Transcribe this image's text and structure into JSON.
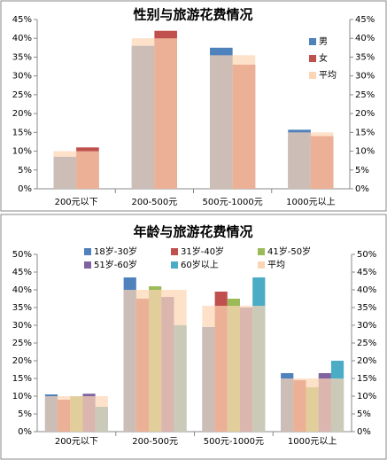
{
  "chart_data": [
    {
      "type": "bar",
      "title": "性别与旅游花费情况",
      "categories": [
        "200元以下",
        "200-500元",
        "500元-1000元",
        "1000元以上"
      ],
      "series": [
        {
          "name": "男",
          "color": "#4f81bd",
          "values": [
            8.5,
            38,
            37.5,
            15.7
          ]
        },
        {
          "name": "女",
          "color": "#c0504d",
          "values": [
            11,
            42,
            33,
            14
          ]
        },
        {
          "name": "平均",
          "color": "#fcd5b4",
          "values": [
            10,
            40,
            35.5,
            15
          ],
          "overlay": true
        }
      ],
      "ylim": [
        0,
        45
      ],
      "yticks": [
        {
          "value": 0,
          "label": "0%"
        },
        {
          "value": 5,
          "label": "5%"
        },
        {
          "value": 10,
          "label": "10%"
        },
        {
          "value": 15,
          "label": "15%"
        },
        {
          "value": 20,
          "label": "20%"
        },
        {
          "value": 25,
          "label": "25%"
        },
        {
          "value": 30,
          "label": "30%"
        },
        {
          "value": 35,
          "label": "35%"
        },
        {
          "value": 40,
          "label": "40%"
        },
        {
          "value": 45,
          "label": "45%"
        }
      ],
      "y2lim": [
        0,
        45
      ],
      "y2ticks": [
        {
          "value": 0,
          "label": "0%"
        },
        {
          "value": 5,
          "label": "5%"
        },
        {
          "value": 10,
          "label": "10%"
        },
        {
          "value": 15,
          "label": "15%"
        },
        {
          "value": 20,
          "label": "20%"
        },
        {
          "value": 25,
          "label": "25%"
        },
        {
          "value": 30,
          "label": "30%"
        },
        {
          "value": 35,
          "label": "35%"
        },
        {
          "value": 40,
          "label": "40%"
        },
        {
          "value": 45,
          "label": "45%"
        }
      ],
      "legend": "right"
    },
    {
      "type": "bar",
      "title": "年龄与旅游花费情况",
      "categories": [
        "200元以下",
        "200-500元",
        "500元-1000元",
        "1000元以上"
      ],
      "series": [
        {
          "name": "18岁-30岁",
          "color": "#4f81bd",
          "values": [
            10.5,
            43.5,
            29.5,
            16.5
          ]
        },
        {
          "name": "31岁-40岁",
          "color": "#c0504d",
          "values": [
            9,
            37.5,
            39.5,
            14.5
          ]
        },
        {
          "name": "41岁-50岁",
          "color": "#9bbb59",
          "values": [
            10,
            41,
            37.5,
            12.5
          ]
        },
        {
          "name": "51岁-60岁",
          "color": "#8064a2",
          "values": [
            10.7,
            38,
            35,
            16.5
          ]
        },
        {
          "name": "60岁以上",
          "color": "#4bacc6",
          "values": [
            7,
            30,
            43.5,
            20
          ]
        },
        {
          "name": "平均",
          "color": "#fcd5b4",
          "values": [
            10,
            40,
            35.5,
            15
          ],
          "overlay": true
        }
      ],
      "ylim": [
        0,
        50
      ],
      "yticks": [
        {
          "value": 0,
          "label": "0%"
        },
        {
          "value": 5,
          "label": "5%"
        },
        {
          "value": 10,
          "label": "10%"
        },
        {
          "value": 15,
          "label": "15%"
        },
        {
          "value": 20,
          "label": "20%"
        },
        {
          "value": 25,
          "label": "25%"
        },
        {
          "value": 30,
          "label": "30%"
        },
        {
          "value": 35,
          "label": "35%"
        },
        {
          "value": 40,
          "label": "40%"
        },
        {
          "value": 45,
          "label": "45%"
        },
        {
          "value": 50,
          "label": "50%"
        }
      ],
      "y2lim": [
        0,
        50
      ],
      "y2ticks": [
        {
          "value": 0,
          "label": "0%"
        },
        {
          "value": 5,
          "label": "5%"
        },
        {
          "value": 10,
          "label": "10%"
        },
        {
          "value": 15,
          "label": "15%"
        },
        {
          "value": 20,
          "label": "20%"
        },
        {
          "value": 25,
          "label": "25%"
        },
        {
          "value": 30,
          "label": "30%"
        },
        {
          "value": 35,
          "label": "35%"
        },
        {
          "value": 40,
          "label": "40%"
        },
        {
          "value": 45,
          "label": "45%"
        },
        {
          "value": 50,
          "label": "50%"
        }
      ],
      "legend": "top"
    }
  ]
}
